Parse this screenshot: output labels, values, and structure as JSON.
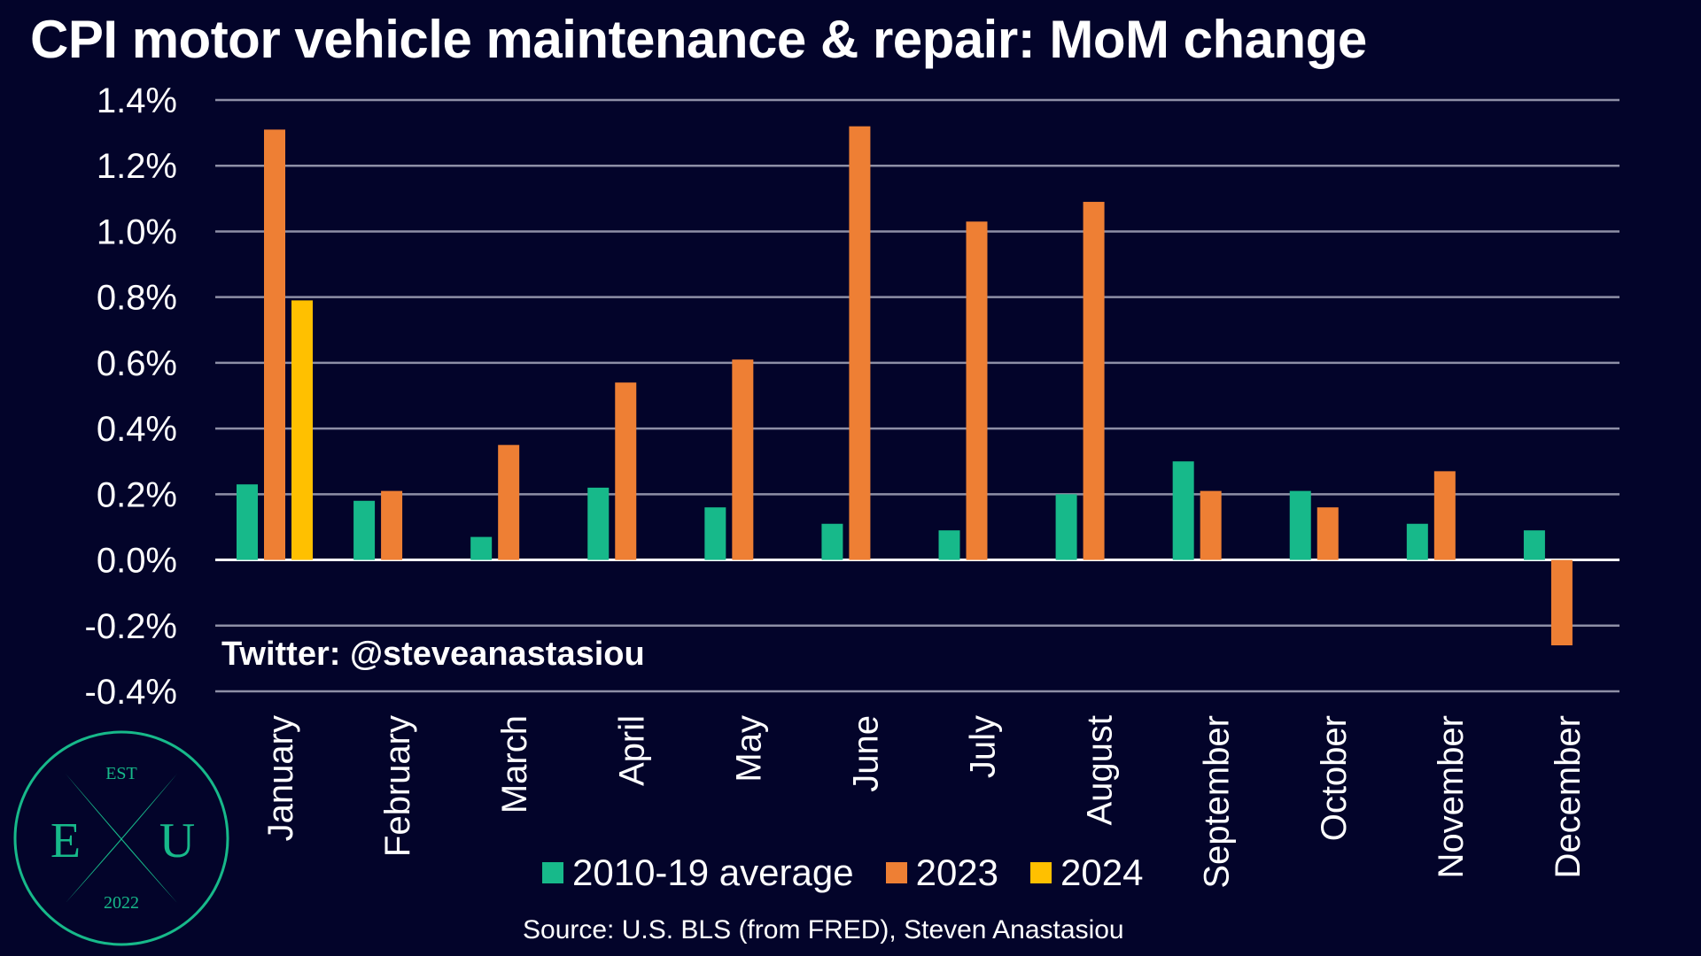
{
  "title": "CPI motor vehicle maintenance & repair: MoM change",
  "watermark": "Twitter: @steveanastasiou",
  "source": "Source: U.S. BLS (from FRED), Steven Anastasiou",
  "logo": {
    "top": "EST",
    "left": "E",
    "right": "U",
    "bottom": "2022"
  },
  "colors": {
    "background": "#03042a",
    "grid": "#8e8fa6",
    "2010-19 average": "#17b98a",
    "2023": "#ee7f34",
    "2024": "#ffc000"
  },
  "legend": [
    {
      "label": "2010-19 average",
      "color": "#17b98a"
    },
    {
      "label": "2023",
      "color": "#ee7f34"
    },
    {
      "label": "2024",
      "color": "#ffc000"
    }
  ],
  "chart_data": {
    "type": "bar",
    "title": "CPI motor vehicle maintenance & repair: MoM change",
    "xlabel": "",
    "ylabel": "",
    "ylim": [
      -0.4,
      1.4
    ],
    "yticks": [
      1.4,
      1.2,
      1.0,
      0.8,
      0.6,
      0.4,
      0.2,
      0.0,
      -0.2,
      -0.4
    ],
    "ytick_labels": [
      "1.4%",
      "1.2%",
      "1.0%",
      "0.8%",
      "0.6%",
      "0.4%",
      "0.2%",
      "0.0%",
      "-0.2%",
      "-0.4%"
    ],
    "grid": true,
    "legend_position": "bottom",
    "categories": [
      "January",
      "February",
      "March",
      "April",
      "May",
      "June",
      "July",
      "August",
      "September",
      "October",
      "November",
      "December"
    ],
    "series": [
      {
        "name": "2010-19 average",
        "color": "#17b98a",
        "values": [
          0.23,
          0.18,
          0.07,
          0.22,
          0.16,
          0.11,
          0.09,
          0.2,
          0.3,
          0.21,
          0.11,
          0.09
        ]
      },
      {
        "name": "2023",
        "color": "#ee7f34",
        "values": [
          1.31,
          0.21,
          0.35,
          0.54,
          0.61,
          1.32,
          1.03,
          1.09,
          0.21,
          0.16,
          0.27,
          -0.26
        ]
      },
      {
        "name": "2024",
        "color": "#ffc000",
        "values": [
          0.79,
          null,
          null,
          null,
          null,
          null,
          null,
          null,
          null,
          null,
          null,
          null
        ]
      }
    ]
  }
}
